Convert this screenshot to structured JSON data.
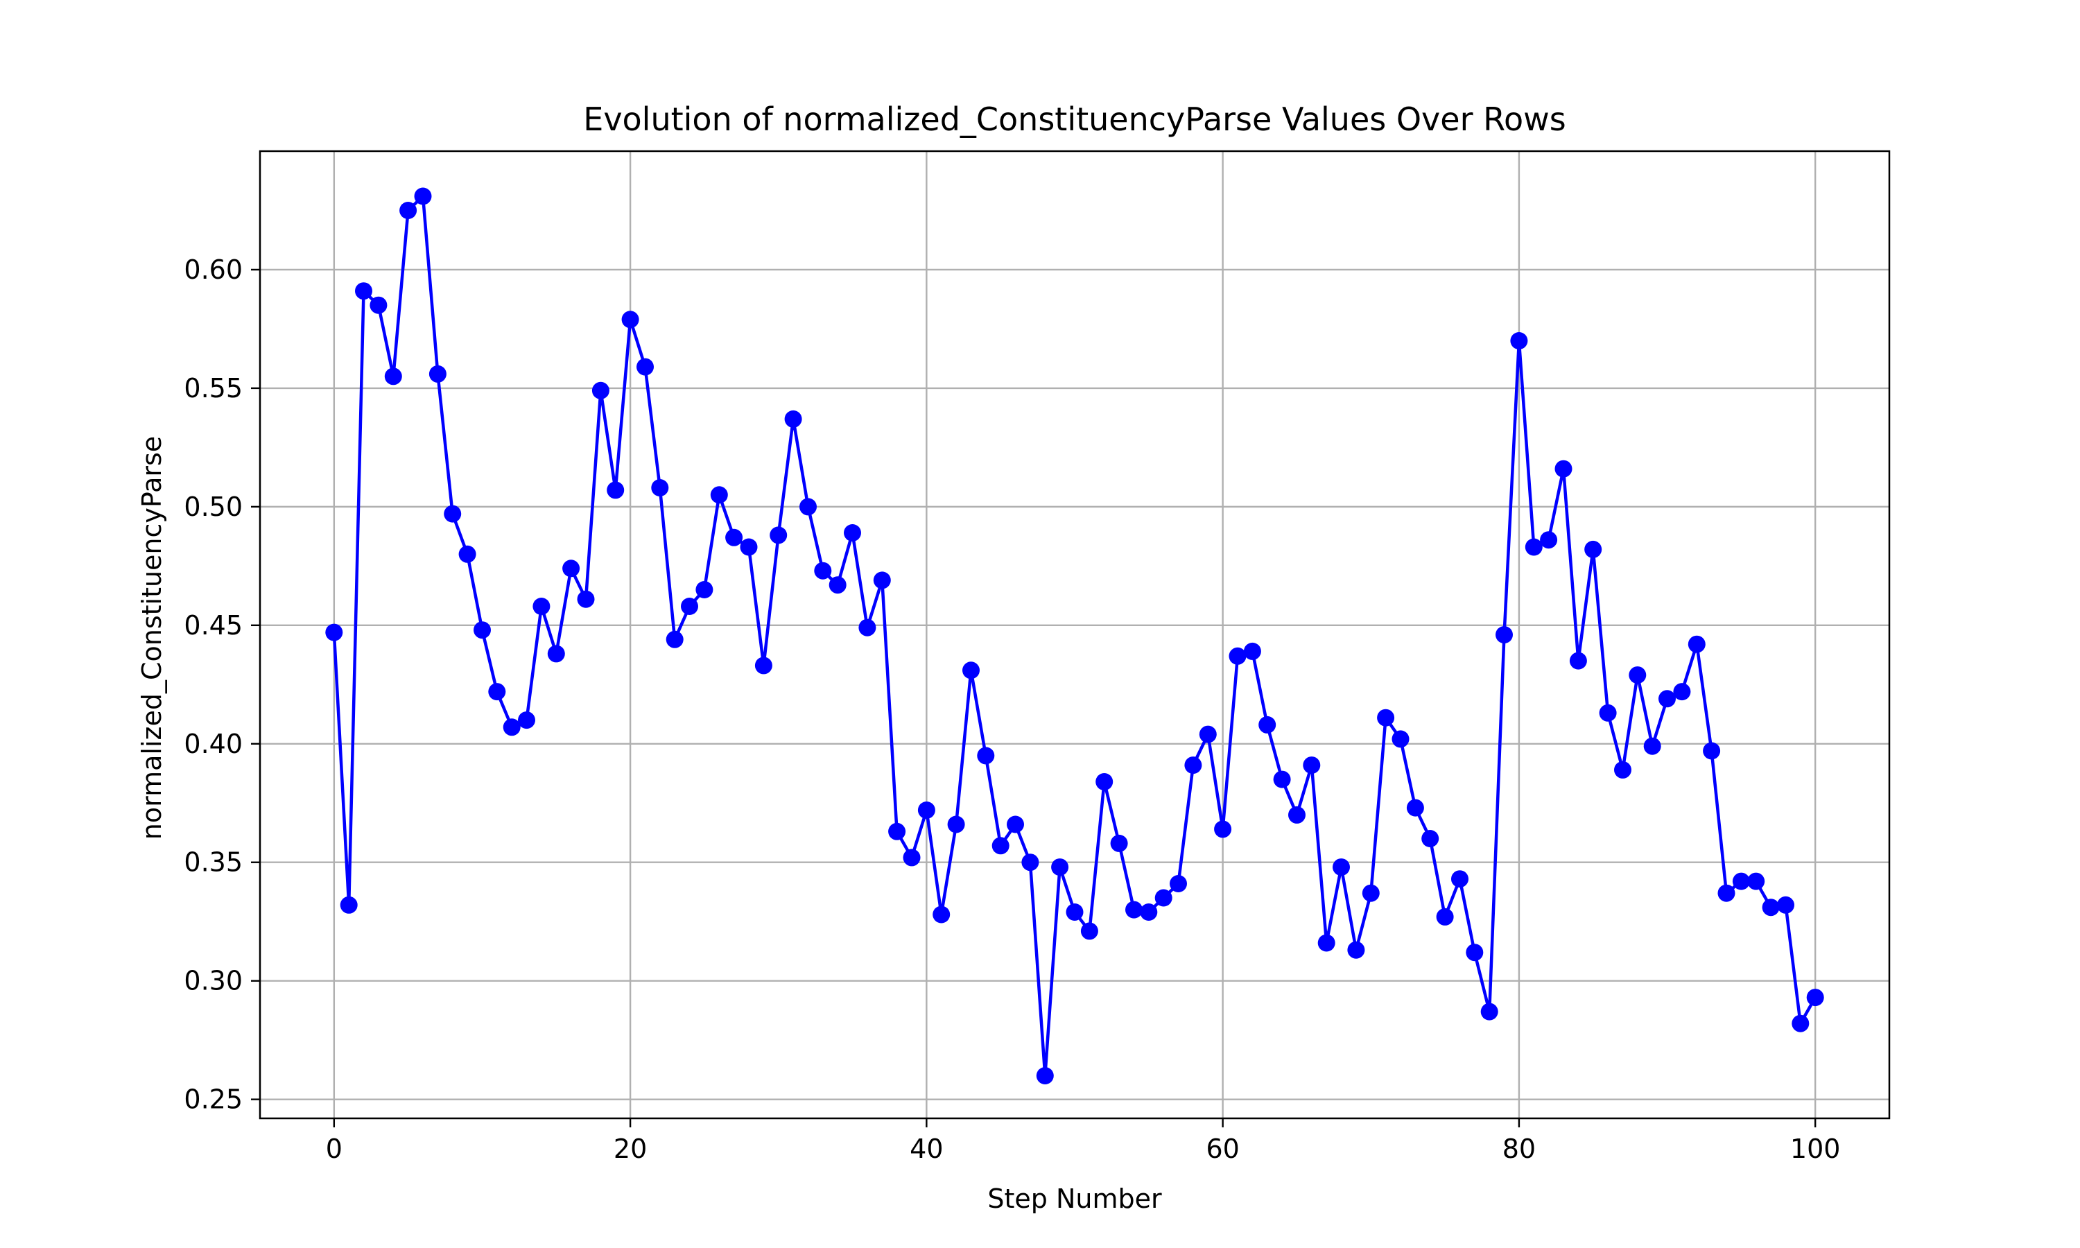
{
  "chart_data": {
    "type": "line",
    "title": "Evolution of normalized_ConstituencyParse Values Over Rows",
    "xlabel": "Step Number",
    "ylabel": "normalized_ConstituencyParse",
    "xlim": [
      -5,
      105
    ],
    "ylim": [
      0.242,
      0.65
    ],
    "xticks": [
      0,
      20,
      40,
      60,
      80,
      100
    ],
    "yticks": [
      0.25,
      0.3,
      0.35,
      0.4,
      0.45,
      0.5,
      0.55,
      0.6
    ],
    "grid": true,
    "legend": "none",
    "series": [
      {
        "color": "#0000ff",
        "marker": "circle",
        "x": [
          0,
          1,
          2,
          3,
          4,
          5,
          6,
          7,
          8,
          9,
          10,
          11,
          12,
          13,
          14,
          15,
          16,
          17,
          18,
          19,
          20,
          21,
          22,
          23,
          24,
          25,
          26,
          27,
          28,
          29,
          30,
          31,
          32,
          33,
          34,
          35,
          36,
          37,
          38,
          39,
          40,
          41,
          42,
          43,
          44,
          45,
          46,
          47,
          48,
          49,
          50,
          51,
          52,
          53,
          54,
          55,
          56,
          57,
          58,
          59,
          60,
          61,
          62,
          63,
          64,
          65,
          66,
          67,
          68,
          69,
          70,
          71,
          72,
          73,
          74,
          75,
          76,
          77,
          78,
          79,
          80,
          81,
          82,
          83,
          84,
          85,
          86,
          87,
          88,
          89,
          90,
          91,
          92,
          93,
          94,
          95,
          96,
          97,
          98,
          99,
          100
        ],
        "values": [
          0.447,
          0.332,
          0.591,
          0.585,
          0.555,
          0.625,
          0.631,
          0.556,
          0.497,
          0.48,
          0.448,
          0.422,
          0.407,
          0.41,
          0.458,
          0.438,
          0.474,
          0.461,
          0.549,
          0.507,
          0.579,
          0.559,
          0.508,
          0.444,
          0.458,
          0.465,
          0.505,
          0.487,
          0.483,
          0.433,
          0.488,
          0.537,
          0.5,
          0.473,
          0.467,
          0.489,
          0.449,
          0.469,
          0.363,
          0.352,
          0.372,
          0.328,
          0.366,
          0.431,
          0.395,
          0.357,
          0.366,
          0.35,
          0.26,
          0.348,
          0.329,
          0.321,
          0.384,
          0.358,
          0.33,
          0.329,
          0.335,
          0.341,
          0.391,
          0.404,
          0.364,
          0.437,
          0.439,
          0.408,
          0.385,
          0.37,
          0.391,
          0.316,
          0.348,
          0.313,
          0.337,
          0.411,
          0.402,
          0.373,
          0.36,
          0.327,
          0.343,
          0.312,
          0.287,
          0.446,
          0.57,
          0.483,
          0.486,
          0.516,
          0.435,
          0.482,
          0.413,
          0.389,
          0.429,
          0.399,
          0.419,
          0.422,
          0.442,
          0.397,
          0.337,
          0.342,
          0.342,
          0.331,
          0.332,
          0.282,
          0.293
        ]
      }
    ]
  }
}
